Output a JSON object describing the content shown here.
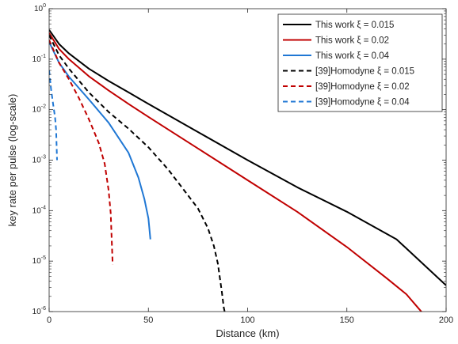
{
  "chart_data": {
    "type": "line",
    "xlabel": "Distance (km)",
    "ylabel": "key rate per pulse (log-scale)",
    "xlim": [
      0,
      200
    ],
    "ylim_log10": [
      -6,
      0
    ],
    "y_scale": "log",
    "x_ticks": [
      "0",
      "50",
      "100",
      "150",
      "200"
    ],
    "y_ticks": [
      {
        "base": "10",
        "exp": "0"
      },
      {
        "base": "10",
        "exp": "-1"
      },
      {
        "base": "10",
        "exp": "-2"
      },
      {
        "base": "10",
        "exp": "-3"
      },
      {
        "base": "10",
        "exp": "-4"
      },
      {
        "base": "10",
        "exp": "-5"
      },
      {
        "base": "10",
        "exp": "-6"
      }
    ],
    "legend_position": "top-right",
    "grid": false,
    "series": [
      {
        "name": "This work ξ = 0.015",
        "color": "#000000",
        "dash": "solid",
        "x": [
          0,
          5,
          10,
          20,
          30,
          40,
          50,
          75,
          100,
          125,
          150,
          175,
          200
        ],
        "y": [
          0.38,
          0.2,
          0.13,
          0.065,
          0.037,
          0.022,
          0.013,
          0.0036,
          0.001,
          0.00029,
          9.5e-05,
          2.7e-05,
          3.3e-06
        ]
      },
      {
        "name": "This work ξ = 0.02",
        "color": "#c00000",
        "dash": "solid",
        "x": [
          0,
          5,
          10,
          20,
          30,
          40,
          50,
          75,
          100,
          125,
          150,
          170,
          180,
          185,
          188
        ],
        "y": [
          0.33,
          0.16,
          0.1,
          0.046,
          0.024,
          0.013,
          0.0072,
          0.0017,
          0.0004,
          9.5e-05,
          1.9e-05,
          4.6e-06,
          2.2e-06,
          1.3e-06,
          9.5e-07
        ]
      },
      {
        "name": "This work ξ = 0.04",
        "color": "#1f77d4",
        "dash": "solid",
        "x": [
          0,
          5,
          10,
          20,
          30,
          40,
          45,
          48,
          50,
          51
        ],
        "y": [
          0.22,
          0.085,
          0.045,
          0.016,
          0.0055,
          0.0014,
          0.00045,
          0.00017,
          7e-05,
          2.7e-05
        ]
      },
      {
        "name": "[39]Homodyne ξ = 0.015",
        "color": "#000000",
        "dash": "dashed",
        "x": [
          0,
          5,
          10,
          20,
          30,
          40,
          50,
          60,
          70,
          75,
          80,
          83,
          85,
          87,
          88,
          88.5
        ],
        "y": [
          0.3,
          0.12,
          0.065,
          0.022,
          0.009,
          0.0042,
          0.0018,
          0.00065,
          0.0002,
          0.00011,
          4.5e-05,
          2e-05,
          9e-06,
          2.5e-06,
          1.2e-06,
          9.7e-07
        ]
      },
      {
        "name": "[39]Homodyne ξ = 0.02",
        "color": "#c00000",
        "dash": "dashed",
        "x": [
          0,
          5,
          10,
          15,
          20,
          25,
          28,
          30,
          31,
          32
        ],
        "y": [
          0.24,
          0.085,
          0.04,
          0.017,
          0.0065,
          0.0022,
          0.00085,
          0.00025,
          9e-05,
          8.5e-06
        ]
      },
      {
        "name": "[39]Homodyne ξ = 0.04",
        "color": "#1f77d4",
        "dash": "dashed",
        "x": [
          0,
          1,
          2,
          3,
          3.5,
          4
        ],
        "y": [
          0.06,
          0.025,
          0.013,
          0.007,
          0.004,
          0.001
        ]
      }
    ]
  }
}
